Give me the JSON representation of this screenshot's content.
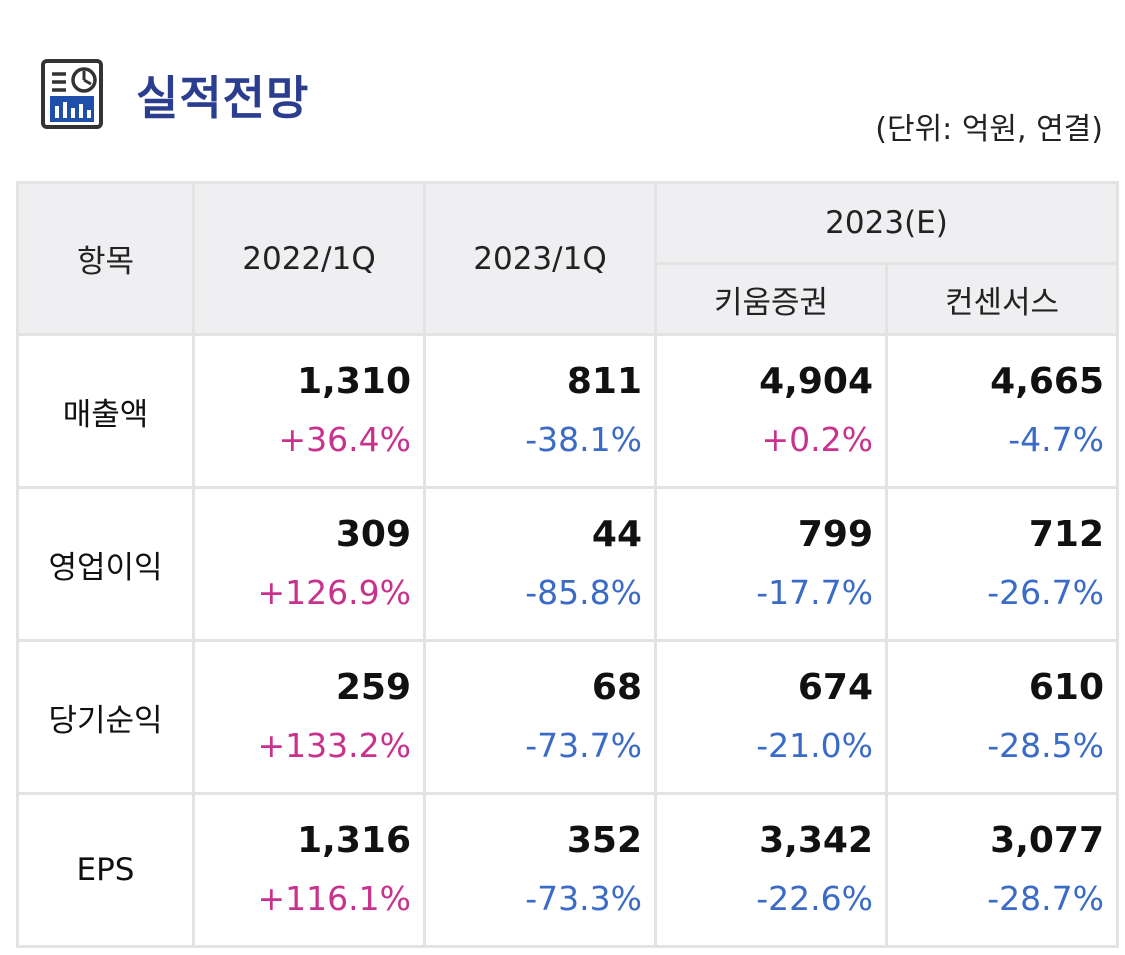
{
  "header": {
    "title": "실적전망",
    "unit": "(단위: 억원, 연결)",
    "icon": "report-chart-icon"
  },
  "colors": {
    "title": "#2b3d8f",
    "positive": "#c8318c",
    "negative": "#3a6bc7",
    "header_bg": "#efeff1"
  },
  "table": {
    "headers": {
      "item": "항목",
      "col1": "2022/1Q",
      "col2": "2023/1Q",
      "group": "2023(E)",
      "sub1": "키움증권",
      "sub2": "컨센서스"
    },
    "rows": [
      {
        "label": "매출액",
        "cells": [
          {
            "value": "1,310",
            "change": "+36.4%"
          },
          {
            "value": "811",
            "change": "-38.1%"
          },
          {
            "value": "4,904",
            "change": "+0.2%"
          },
          {
            "value": "4,665",
            "change": "-4.7%"
          }
        ]
      },
      {
        "label": "영업이익",
        "cells": [
          {
            "value": "309",
            "change": "+126.9%"
          },
          {
            "value": "44",
            "change": "-85.8%"
          },
          {
            "value": "799",
            "change": "-17.7%"
          },
          {
            "value": "712",
            "change": "-26.7%"
          }
        ]
      },
      {
        "label": "당기순익",
        "cells": [
          {
            "value": "259",
            "change": "+133.2%"
          },
          {
            "value": "68",
            "change": "-73.7%"
          },
          {
            "value": "674",
            "change": "-21.0%"
          },
          {
            "value": "610",
            "change": "-28.5%"
          }
        ]
      },
      {
        "label": "EPS",
        "cells": [
          {
            "value": "1,316",
            "change": "+116.1%"
          },
          {
            "value": "352",
            "change": "-73.3%"
          },
          {
            "value": "3,342",
            "change": "-22.6%"
          },
          {
            "value": "3,077",
            "change": "-28.7%"
          }
        ]
      }
    ]
  }
}
